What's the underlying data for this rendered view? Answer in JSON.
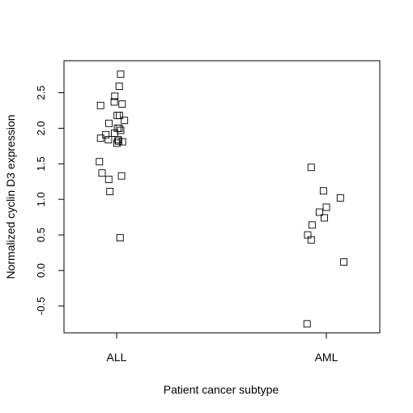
{
  "chart_data": {
    "type": "scatter",
    "title": "",
    "xlabel": "Patient cancer subtype",
    "ylabel": "Normalized cyclin D3 expression",
    "categories": [
      "ALL",
      "AML"
    ],
    "ylim": [
      -0.87,
      2.87
    ],
    "yticks": [
      -0.5,
      0.0,
      0.5,
      1.0,
      1.5,
      2.0,
      2.5
    ],
    "ytick_labels": [
      "-0.5",
      "0.0",
      "0.5",
      "1.0",
      "1.5",
      "2.0",
      "2.5"
    ],
    "grid": false,
    "marker": "open-square",
    "series": [
      {
        "category": "ALL",
        "points": [
          {
            "jitter": 0.14,
            "y": 2.76
          },
          {
            "jitter": 0.09,
            "y": 2.59
          },
          {
            "jitter": -0.06,
            "y": 2.45
          },
          {
            "jitter": -0.08,
            "y": 2.37
          },
          {
            "jitter": -0.55,
            "y": 2.32
          },
          {
            "jitter": 0.19,
            "y": 2.34
          },
          {
            "jitter": 0.02,
            "y": 2.18
          },
          {
            "jitter": 0.1,
            "y": 2.18
          },
          {
            "jitter": 0.27,
            "y": 2.11
          },
          {
            "jitter": -0.26,
            "y": 2.07
          },
          {
            "jitter": 0.09,
            "y": 2.0
          },
          {
            "jitter": 0.03,
            "y": 2.0
          },
          {
            "jitter": 0.14,
            "y": 1.97
          },
          {
            "jitter": -0.07,
            "y": 1.93
          },
          {
            "jitter": -0.37,
            "y": 1.91
          },
          {
            "jitter": -0.55,
            "y": 1.86
          },
          {
            "jitter": -0.28,
            "y": 1.84
          },
          {
            "jitter": 0.05,
            "y": 1.84
          },
          {
            "jitter": 0.2,
            "y": 1.81
          },
          {
            "jitter": 0.01,
            "y": 1.79
          },
          {
            "jitter": 0.07,
            "y": 1.82
          },
          {
            "jitter": -0.59,
            "y": 1.53
          },
          {
            "jitter": -0.5,
            "y": 1.37
          },
          {
            "jitter": -0.27,
            "y": 1.28
          },
          {
            "jitter": 0.17,
            "y": 1.33
          },
          {
            "jitter": -0.23,
            "y": 1.11
          },
          {
            "jitter": 0.12,
            "y": 0.46
          }
        ]
      },
      {
        "category": "AML",
        "points": [
          {
            "jitter": -0.52,
            "y": 1.45
          },
          {
            "jitter": -0.1,
            "y": 1.12
          },
          {
            "jitter": 0.48,
            "y": 1.02
          },
          {
            "jitter": 0.0,
            "y": 0.89
          },
          {
            "jitter": -0.24,
            "y": 0.82
          },
          {
            "jitter": -0.07,
            "y": 0.74
          },
          {
            "jitter": -0.49,
            "y": 0.64
          },
          {
            "jitter": -0.64,
            "y": 0.5
          },
          {
            "jitter": -0.52,
            "y": 0.43
          },
          {
            "jitter": 0.6,
            "y": 0.12
          },
          {
            "jitter": -0.66,
            "y": -0.75
          }
        ]
      }
    ]
  }
}
